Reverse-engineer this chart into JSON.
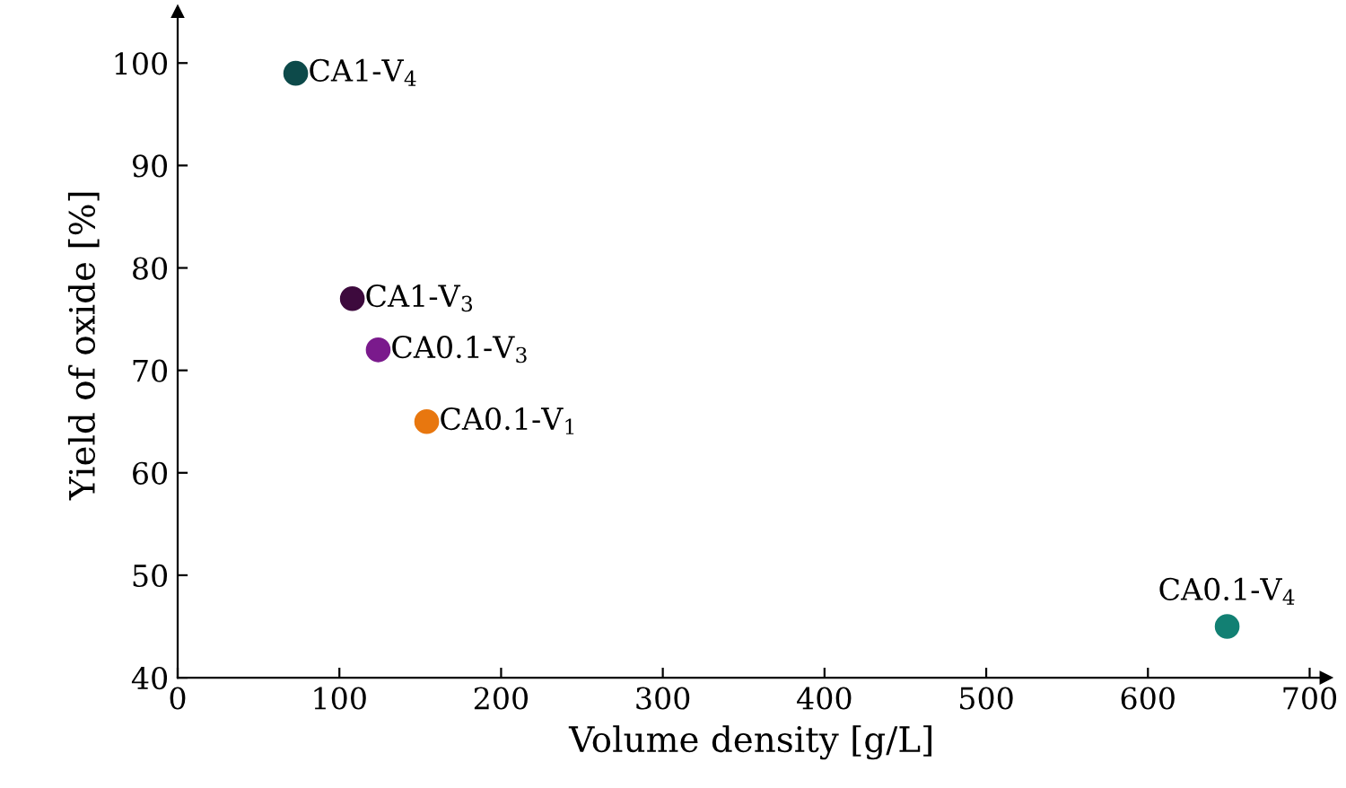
{
  "chart_data": {
    "type": "scatter",
    "xlabel": "Volume density [g/L]",
    "ylabel": "Yield of oxide [%]",
    "xlim": [
      0,
      710
    ],
    "ylim": [
      40,
      105
    ],
    "xticks": [
      0,
      100,
      200,
      300,
      400,
      500,
      600,
      700
    ],
    "yticks": [
      40,
      50,
      60,
      70,
      80,
      90,
      100
    ],
    "grid": false,
    "legend": false,
    "marker": "circle",
    "series": [
      {
        "name": "CA1-V$_{4}$",
        "color": "#0d4a4a",
        "x": [
          73
        ],
        "values": [
          99
        ]
      },
      {
        "name": "CA1-V$_{3}$",
        "color": "#3d0a3d",
        "x": [
          108
        ],
        "values": [
          77
        ]
      },
      {
        "name": "CA0.1-V$_{3}$",
        "color": "#7a1a8c",
        "x": [
          124
        ],
        "values": [
          72
        ]
      },
      {
        "name": "CA0.1-V$_{1}$",
        "color": "#e8770f",
        "x": [
          154
        ],
        "values": [
          65
        ]
      },
      {
        "name": "CA0.1-V$_{4}$",
        "color": "#128073",
        "x": [
          649
        ],
        "values": [
          45
        ]
      }
    ]
  }
}
